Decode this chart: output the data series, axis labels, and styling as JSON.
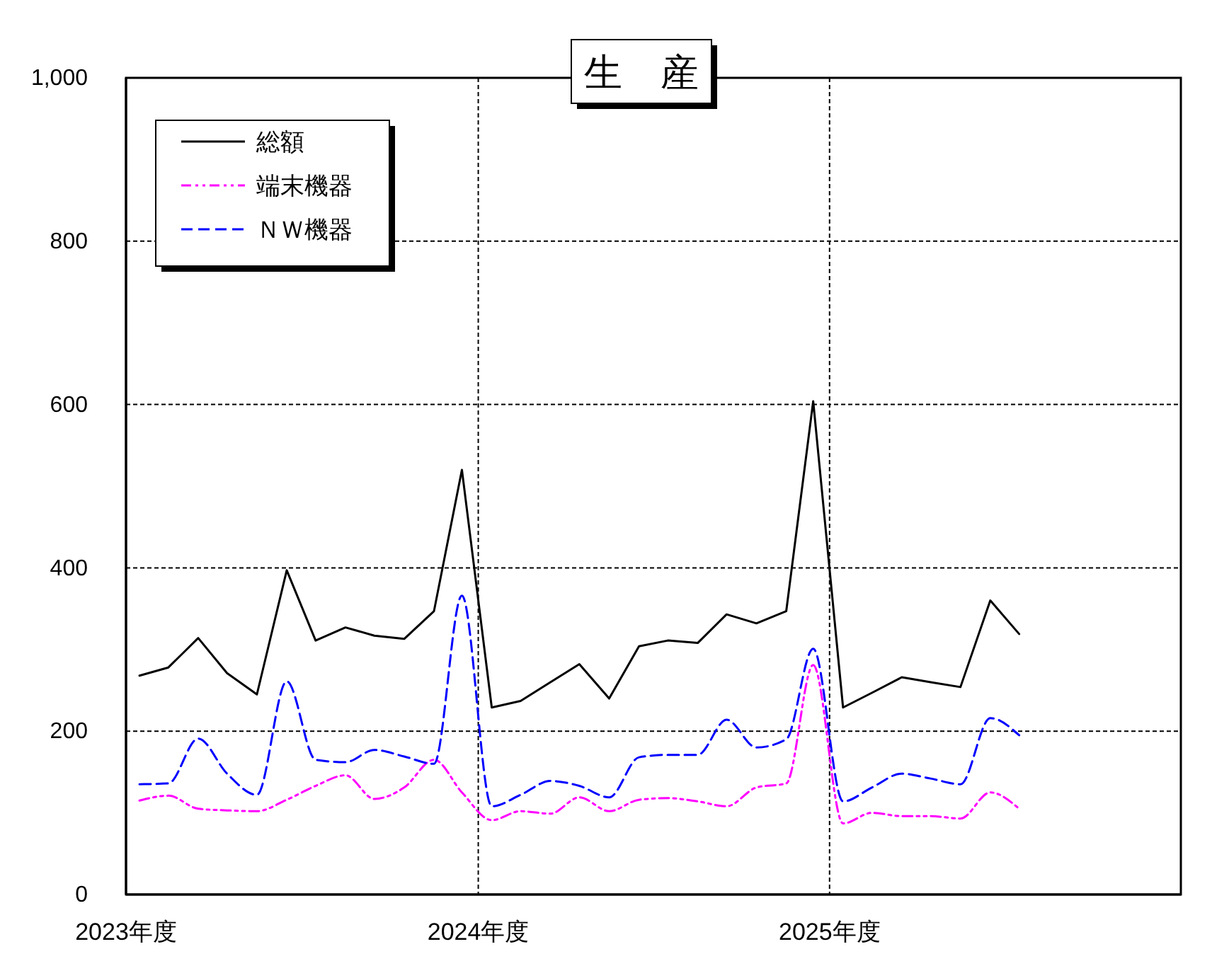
{
  "chart_data": {
    "type": "line",
    "title": "生　産",
    "x": [
      "2023-04-15",
      "2023-05-15",
      "2023-06-15",
      "2023-07-15",
      "2023-08-15",
      "2023-09-15",
      "2023-10-15",
      "2023-11-15",
      "2023-12-15",
      "2024-01-15",
      "2024-02-15",
      "2024-03-15",
      "2024-04-15",
      "2024-05-15",
      "2024-06-15",
      "2024-07-15",
      "2024-08-15",
      "2024-09-15",
      "2024-10-15",
      "2024-11-15",
      "2024-12-15",
      "2025-01-15",
      "2025-02-15",
      "2025-03-15",
      "2025-04-15",
      "2025-05-15",
      "2025-06-15",
      "2025-07-15",
      "2025-08-15",
      "2025-09-15",
      "2025-10-15"
    ],
    "xlim": [
      "2023-04-01",
      "2026-04-01"
    ],
    "xticks": [
      {
        "value": "2023-04-01",
        "label": "2023年度"
      },
      {
        "value": "2024-04-01",
        "label": "2024年度"
      },
      {
        "value": "2025-04-01",
        "label": "2025年度"
      }
    ],
    "ylim": [
      0,
      1000
    ],
    "yticks": [
      0,
      200,
      400,
      600,
      800,
      {
        "value": 1000,
        "label": "1,000"
      }
    ],
    "grid": true,
    "legend": "top left",
    "series": [
      {
        "name": "総額",
        "color": "#000000",
        "line_style": "solid",
        "values": [
          268,
          278,
          314,
          271,
          245,
          397,
          311,
          327,
          317,
          313,
          347,
          520,
          229,
          237,
          260,
          282,
          240,
          304,
          311,
          308,
          343,
          332,
          347,
          604,
          229,
          247,
          266,
          260,
          254,
          360,
          319
        ]
      },
      {
        "name": "端末機器",
        "color": "#ff00ff",
        "line_style": "dotted",
        "values": [
          115,
          121,
          105,
          103,
          102,
          116,
          133,
          146,
          117,
          131,
          165,
          125,
          91,
          102,
          99,
          119,
          102,
          116,
          118,
          114,
          108,
          131,
          136,
          281,
          87,
          100,
          96,
          96,
          93,
          125,
          105
        ]
      },
      {
        "name": "ＮＷ機器",
        "color": "#0000ff",
        "line_style": "dashed",
        "values": [
          135,
          136,
          191,
          148,
          122,
          261,
          165,
          162,
          177,
          169,
          160,
          366,
          108,
          122,
          139,
          133,
          119,
          168,
          171,
          171,
          214,
          180,
          190,
          301,
          114,
          131,
          148,
          142,
          135,
          216,
          195
        ]
      }
    ]
  }
}
